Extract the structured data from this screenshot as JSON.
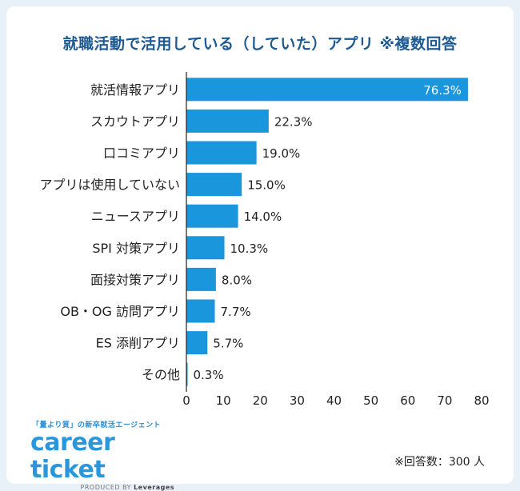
{
  "chart_data": {
    "type": "bar",
    "orientation": "horizontal",
    "title": "就職活動で活用している（していた）アプリ ※複数回答",
    "categories": [
      "就活情報アプリ",
      "スカウトアプリ",
      "口コミアプリ",
      "アプリは使用していない",
      "ニュースアプリ",
      "SPI 対策アプリ",
      "面接対策アプリ",
      "OB・OG 訪問アプリ",
      "ES 添削アプリ",
      "その他"
    ],
    "values": [
      76.3,
      22.3,
      19.0,
      15.0,
      14.0,
      10.3,
      8.0,
      7.7,
      5.7,
      0.3
    ],
    "value_labels": [
      "76.3%",
      "22.3%",
      "19.0%",
      "15.0%",
      "14.0%",
      "10.3%",
      "8.0%",
      "7.7%",
      "5.7%",
      "0.3%"
    ],
    "xlim": [
      0,
      80
    ],
    "xticks": [
      0,
      10,
      20,
      30,
      40,
      50,
      60,
      70,
      80
    ],
    "bar_color": "#1a96dc",
    "grid": false
  },
  "logo": {
    "tagline": "「量より質」の新卒就活エージェント",
    "name": "career ticket",
    "produced_by": "PRODUCED BY",
    "brand": "Leverages"
  },
  "note": "※回答数：300 人"
}
